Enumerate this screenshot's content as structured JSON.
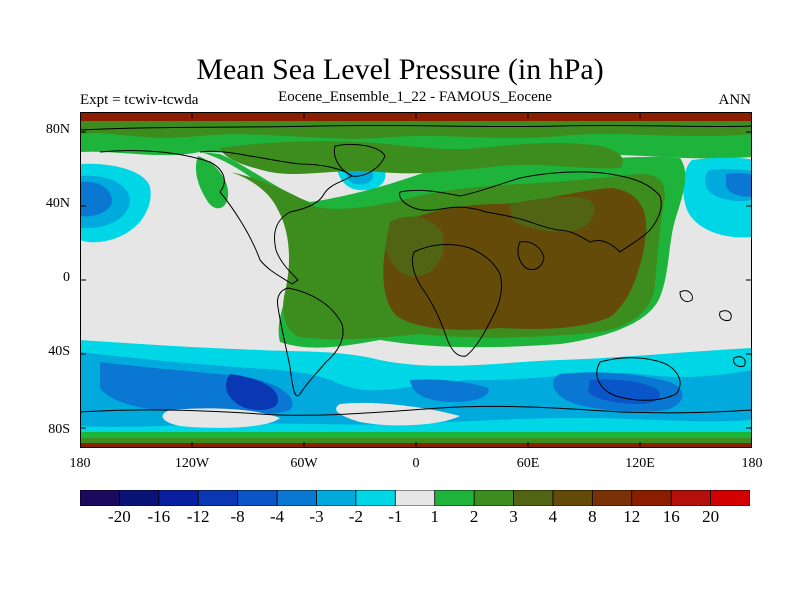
{
  "title": "Mean Sea Level Pressure (in hPa)",
  "subtitle_left": "Expt = tcwiv-tcwda",
  "subtitle_center": "Eocene_Ensemble_1_22 - FAMOUS_Eocene",
  "subtitle_right": "ANN",
  "lat_labels": [
    "80N",
    "40N",
    "0",
    "40S",
    "80S"
  ],
  "lon_labels": [
    "180",
    "120W",
    "60W",
    "0",
    "60E",
    "120E",
    "180"
  ],
  "colorbar": {
    "colors": [
      "#1a0a5e",
      "#0a1478",
      "#0a1ea0",
      "#0a37b4",
      "#0a55c8",
      "#0a78d2",
      "#00aadc",
      "#00d7e6",
      "#e6e6e6",
      "#1eb43c",
      "#3c8c1e",
      "#506414",
      "#644b0a",
      "#783205",
      "#8c1e00",
      "#b40f0a",
      "#d20000"
    ],
    "labels": [
      "-20",
      "-16",
      "-12",
      "-8",
      "-4",
      "-3",
      "-2",
      "-1",
      "1",
      "2",
      "3",
      "4",
      "8",
      "12",
      "16",
      "20"
    ]
  }
}
